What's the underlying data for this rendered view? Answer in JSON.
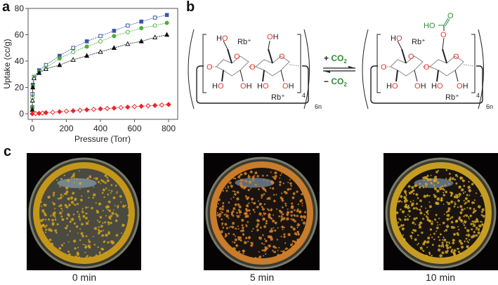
{
  "figure": {
    "panels": [
      {
        "label": "a"
      },
      {
        "label": "b"
      },
      {
        "label": "c"
      }
    ]
  },
  "chart_data": {
    "type": "scatter",
    "title": "",
    "xlabel": "Pressure (Torr)",
    "ylabel": "Uptake (cc/g)",
    "xlim": [
      0,
      800
    ],
    "ylim": [
      0,
      80
    ],
    "xticks": [
      0,
      200,
      400,
      600,
      800
    ],
    "yticks": [
      0,
      20,
      40,
      60,
      80
    ],
    "grid": false,
    "legend": null,
    "series": [
      {
        "name": "blue-squares",
        "color": "#3a55b0",
        "marker": "square",
        "x": [
          0,
          1,
          3,
          10,
          40,
          80,
          160,
          240,
          320,
          400,
          480,
          560,
          640,
          720,
          790
        ],
        "y": [
          5,
          15,
          22,
          28,
          33,
          37,
          44,
          50,
          55,
          59,
          63,
          67,
          70,
          73,
          75
        ]
      },
      {
        "name": "green-circles",
        "color": "#4caf3a",
        "marker": "circle",
        "x": [
          0,
          1,
          3,
          10,
          40,
          80,
          160,
          240,
          320,
          400,
          480,
          560,
          640,
          720,
          790
        ],
        "y": [
          5,
          12,
          21,
          28,
          32,
          35,
          42,
          47,
          51,
          55,
          59,
          62,
          65,
          67,
          69
        ]
      },
      {
        "name": "black-triangles",
        "color": "#111111",
        "marker": "triangle",
        "x": [
          0,
          1,
          3,
          10,
          40,
          80,
          160,
          240,
          320,
          400,
          480,
          560,
          640,
          720,
          790
        ],
        "y": [
          3,
          10,
          20,
          27,
          31,
          34,
          37,
          41,
          44,
          47,
          50,
          53,
          55,
          58,
          60
        ]
      },
      {
        "name": "red-diamonds",
        "color": "#e8262a",
        "marker": "diamond",
        "x": [
          0,
          20,
          40,
          60,
          80,
          120,
          160,
          200,
          240,
          280,
          320,
          360,
          400,
          440,
          480,
          520,
          560,
          600,
          640,
          680,
          720,
          760,
          800
        ],
        "y": [
          0,
          0.1,
          0.3,
          0.5,
          0.8,
          1.1,
          1.5,
          1.9,
          2.2,
          2.6,
          3.0,
          3.3,
          3.7,
          4.0,
          4.3,
          4.7,
          5.0,
          5.4,
          5.7,
          6.0,
          6.3,
          6.6,
          7.0
        ]
      }
    ]
  },
  "scheme": {
    "left": {
      "rb_top": "Rb⁺",
      "rb_bottom": "Rb⁺",
      "oh_labels": [
        "HO",
        "OH",
        "HO",
        "OH",
        "HO",
        "OH"
      ],
      "ring_o": "O",
      "bridge_o": "O",
      "repeat_sub": "4",
      "outer_sub": "6n"
    },
    "right": {
      "rb_top": "Rb⁺",
      "rb_bottom": "Rb⁺",
      "carbonate_ho": "HO",
      "carbonate_o": "O",
      "repeat_sub": "4",
      "outer_sub": "6n"
    },
    "arrow": {
      "forward": "+ CO",
      "reverse": "− CO",
      "subscript": "2"
    },
    "colors": {
      "oxygen": "#e8352a",
      "co2": "#2e8b3a",
      "bond": "#222222",
      "grey_bond": "#888888"
    }
  },
  "photos": [
    {
      "caption": "0 min",
      "tint": "#d4a21a"
    },
    {
      "caption": "5 min",
      "tint": "#d9842a"
    },
    {
      "caption": "10 min",
      "tint": "#d6a821"
    }
  ]
}
